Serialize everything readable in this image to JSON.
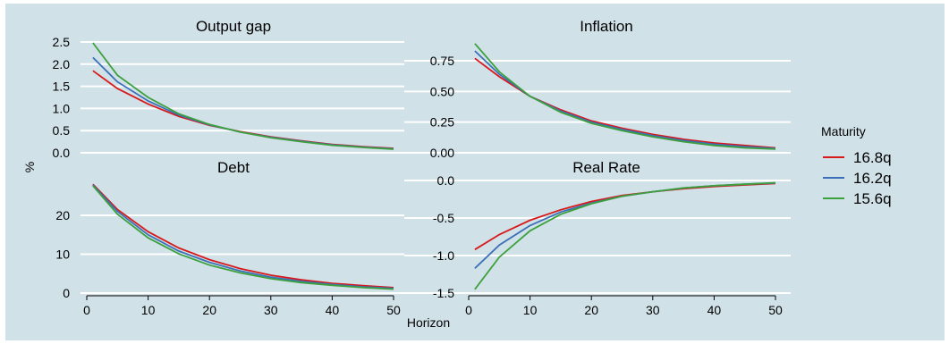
{
  "chart_data": {
    "type": "line",
    "xlabel": "Horizon",
    "ylabel": "%",
    "xlim": [
      0,
      50
    ],
    "x_ticks": [
      0,
      10,
      20,
      30,
      40,
      50
    ],
    "legend": {
      "title": "Maturity",
      "position": "right",
      "entries": [
        {
          "name": "16.8q",
          "color": "#d7191c"
        },
        {
          "name": "16.2q",
          "color": "#3b70b8"
        },
        {
          "name": "15.6q",
          "color": "#3ca03c"
        }
      ]
    },
    "grid": true,
    "panels": [
      {
        "title": "Output gap",
        "ylim": [
          0,
          2.5
        ],
        "y_ticks": [
          "0.0",
          "0.5",
          "1.0",
          "1.5",
          "2.0",
          "2.5"
        ],
        "x": [
          1,
          5,
          10,
          15,
          20,
          25,
          30,
          35,
          40,
          45,
          50
        ],
        "series": [
          {
            "name": "16.8q",
            "color": "#d7191c",
            "values": [
              1.85,
              1.45,
              1.1,
              0.82,
              0.62,
              0.48,
              0.36,
              0.27,
              0.19,
              0.14,
              0.1
            ]
          },
          {
            "name": "16.2q",
            "color": "#3b70b8",
            "values": [
              2.15,
              1.6,
              1.17,
              0.85,
              0.63,
              0.47,
              0.35,
              0.26,
              0.18,
              0.13,
              0.09
            ]
          },
          {
            "name": "15.6q",
            "color": "#3ca03c",
            "values": [
              2.48,
              1.75,
              1.25,
              0.88,
              0.64,
              0.47,
              0.34,
              0.25,
              0.17,
              0.12,
              0.08
            ]
          }
        ]
      },
      {
        "title": "Inflation",
        "ylim": [
          0,
          0.9
        ],
        "y_ticks": [
          "0.00",
          "0.25",
          "0.50",
          "0.75"
        ],
        "x": [
          1,
          5,
          10,
          15,
          20,
          25,
          30,
          35,
          40,
          45,
          50
        ],
        "series": [
          {
            "name": "16.8q",
            "color": "#d7191c",
            "values": [
              0.77,
              0.62,
              0.46,
              0.35,
              0.26,
              0.2,
              0.15,
              0.11,
              0.08,
              0.06,
              0.04
            ]
          },
          {
            "name": "16.2q",
            "color": "#3b70b8",
            "values": [
              0.83,
              0.64,
              0.46,
              0.34,
              0.25,
              0.19,
              0.14,
              0.1,
              0.07,
              0.05,
              0.035
            ]
          },
          {
            "name": "15.6q",
            "color": "#3ca03c",
            "values": [
              0.89,
              0.66,
              0.46,
              0.33,
              0.24,
              0.18,
              0.13,
              0.09,
              0.06,
              0.04,
              0.03
            ]
          }
        ]
      },
      {
        "title": "Debt",
        "ylim": [
          0,
          29
        ],
        "y_ticks": [
          "0",
          "10",
          "20"
        ],
        "x": [
          1,
          5,
          10,
          15,
          20,
          25,
          30,
          35,
          40,
          45,
          50
        ],
        "series": [
          {
            "name": "16.8q",
            "color": "#d7191c",
            "values": [
              28,
              21.5,
              15.8,
              11.6,
              8.6,
              6.3,
              4.6,
              3.4,
              2.5,
              1.9,
              1.4
            ]
          },
          {
            "name": "16.2q",
            "color": "#3b70b8",
            "values": [
              27.8,
              21,
              15,
              10.8,
              7.9,
              5.7,
              4.1,
              3,
              2.2,
              1.6,
              1.2
            ]
          },
          {
            "name": "15.6q",
            "color": "#3ca03c",
            "values": [
              27.6,
              20.3,
              14.2,
              10.1,
              7.2,
              5.2,
              3.7,
              2.7,
              2,
              1.4,
              1
            ]
          }
        ]
      },
      {
        "title": "Real Rate",
        "ylim": [
          -1.5,
          0.05
        ],
        "y_ticks": [
          "-1.5",
          "-1.0",
          "-0.5",
          "0.0"
        ],
        "x": [
          1,
          5,
          10,
          15,
          20,
          25,
          30,
          35,
          40,
          45,
          50
        ],
        "series": [
          {
            "name": "16.8q",
            "color": "#d7191c",
            "values": [
              -0.92,
              -0.72,
              -0.53,
              -0.39,
              -0.28,
              -0.2,
              -0.15,
              -0.11,
              -0.08,
              -0.06,
              -0.04
            ]
          },
          {
            "name": "16.2q",
            "color": "#3b70b8",
            "values": [
              -1.17,
              -0.86,
              -0.6,
              -0.42,
              -0.3,
              -0.21,
              -0.15,
              -0.1,
              -0.07,
              -0.05,
              -0.035
            ]
          },
          {
            "name": "15.6q",
            "color": "#3ca03c",
            "values": [
              -1.45,
              -1.02,
              -0.67,
              -0.45,
              -0.31,
              -0.21,
              -0.15,
              -0.1,
              -0.07,
              -0.05,
              -0.03
            ]
          }
        ]
      }
    ]
  }
}
